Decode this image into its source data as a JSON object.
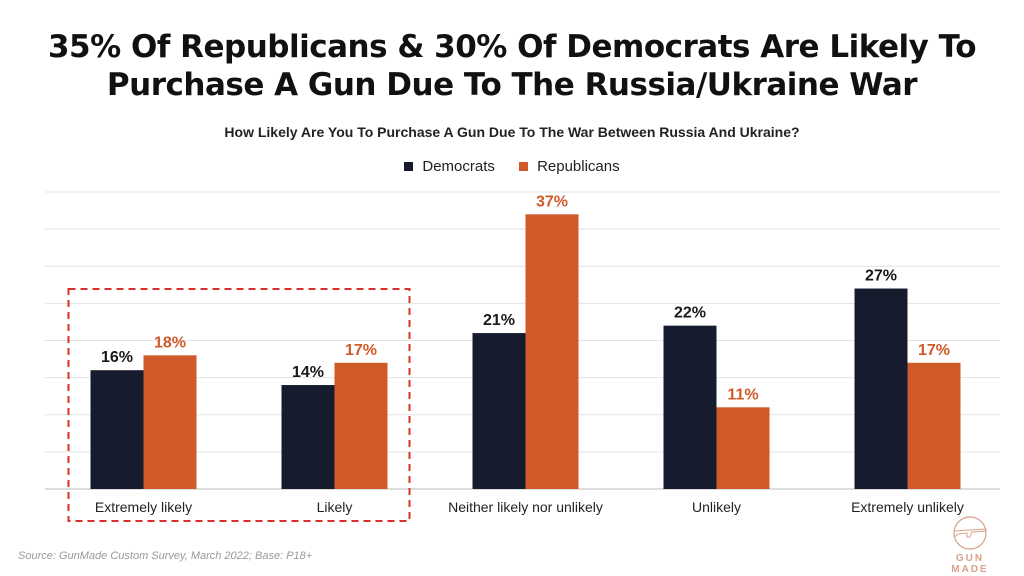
{
  "title_line1": "35% Of Republicans & 30% Of Democrats Are Likely To",
  "title_line2": "Purchase A Gun Due To The Russia/Ukraine War",
  "source": "Source: GunMade Custom Survey, March 2022; Base: P18+",
  "logo_text": "GUN MADE",
  "chart_data": {
    "type": "bar",
    "title": "How Likely Are You To Purchase A Gun Due To The War Between Russia And Ukraine?",
    "categories": [
      "Extremely likely",
      "Likely",
      "Neither likely nor unlikely",
      "Unlikely",
      "Extremely unlikely"
    ],
    "series": [
      {
        "name": "Democrats",
        "values": [
          16,
          14,
          21,
          22,
          27
        ],
        "labels": [
          "16%",
          "14%",
          "21%",
          "22%",
          "27%"
        ],
        "color": "#161c2e"
      },
      {
        "name": "Republicans",
        "values": [
          18,
          17,
          37,
          11,
          17
        ],
        "labels": [
          "18%",
          "17%",
          "37%",
          "11%",
          "17%"
        ],
        "color": "#d05a2a"
      }
    ],
    "ylim": [
      0,
      40
    ],
    "grid": true,
    "legend_position": "top",
    "highlight": {
      "categories": [
        "Extremely likely",
        "Likely"
      ],
      "style": "red dashed box",
      "color": "#d9302c"
    }
  }
}
